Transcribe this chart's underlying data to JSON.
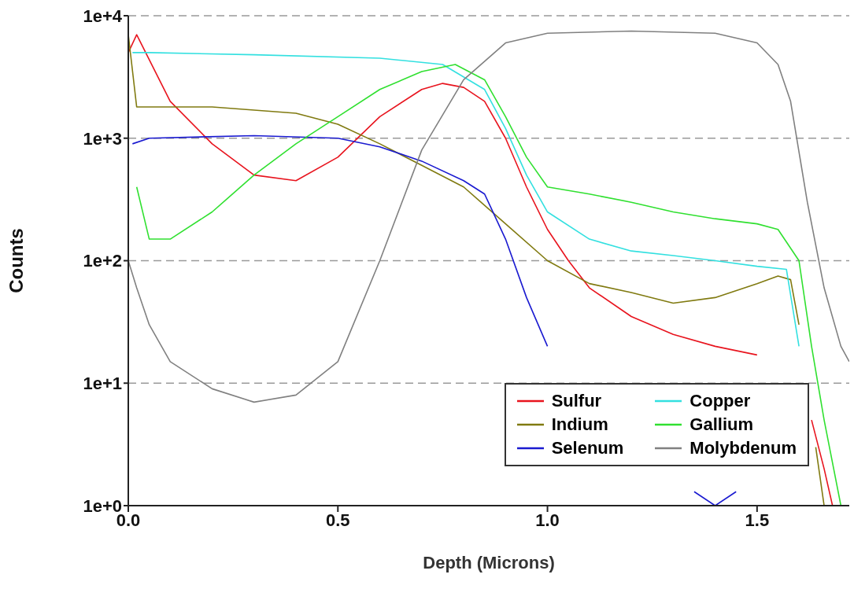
{
  "chart_data": {
    "type": "line",
    "xlabel": "Depth (Microns)",
    "ylabel": "Counts",
    "log": "y",
    "grid": "y",
    "legend": "bottom right",
    "marker": "none",
    "line_style": "solid",
    "xlim": [
      0,
      1.72
    ],
    "xticks": [
      {
        "value": 0,
        "label": "0.0"
      },
      {
        "value": 0.5,
        "label": "0.5"
      },
      {
        "value": 1,
        "label": "1.0"
      },
      {
        "value": 1.5,
        "label": "1.5"
      }
    ],
    "ylim": [
      1,
      10000
    ],
    "yticks": [
      {
        "value": 1,
        "label": "1e+0"
      },
      {
        "value": 10,
        "label": "1e+1"
      },
      {
        "value": 100,
        "label": "1e+2"
      },
      {
        "value": 1000,
        "label": "1e+3"
      },
      {
        "value": 10000,
        "label": "1e+4"
      }
    ],
    "series": [
      {
        "name": "Sulfur",
        "color": "#e8141e",
        "x": [
          0,
          0.02,
          0.1,
          0.2,
          0.3,
          0.4,
          0.5,
          0.6,
          0.7,
          0.75,
          0.8,
          0.85,
          0.9,
          0.95,
          1.0,
          1.05,
          1.1,
          1.2,
          1.3,
          1.4,
          1.5,
          1.55,
          1.63,
          1.66,
          1.68
        ],
        "values": [
          5000,
          7000,
          2000,
          900,
          500,
          450,
          700,
          1500,
          2500,
          2800,
          2600,
          2000,
          1000,
          400,
          180,
          100,
          60,
          35,
          25,
          20,
          17,
          null,
          5,
          2,
          1
        ]
      },
      {
        "name": "Indium",
        "color": "#807a10",
        "x": [
          0,
          0.02,
          0.2,
          0.4,
          0.5,
          0.6,
          0.7,
          0.8,
          0.9,
          1.0,
          1.1,
          1.2,
          1.3,
          1.4,
          1.5,
          1.55,
          1.58,
          1.6,
          1.61,
          1.64,
          1.66
        ],
        "values": [
          7000,
          1800,
          1800,
          1600,
          1300,
          900,
          600,
          400,
          200,
          100,
          65,
          55,
          45,
          50,
          65,
          75,
          70,
          30,
          null,
          3,
          1
        ]
      },
      {
        "name": "Selenum",
        "color": "#1a1ad0",
        "x": [
          0.01,
          0.05,
          0.3,
          0.5,
          0.6,
          0.7,
          0.8,
          0.85,
          0.9,
          0.95,
          1.0,
          1.05,
          1.35,
          1.4,
          1.45
        ],
        "values": [
          900,
          1000,
          1050,
          1000,
          850,
          650,
          450,
          350,
          150,
          50,
          20,
          null,
          1.3,
          1,
          1.3
        ]
      },
      {
        "name": "Copper",
        "color": "#33e0e0",
        "x": [
          0.01,
          0.05,
          0.3,
          0.6,
          0.75,
          0.85,
          0.9,
          0.95,
          1.0,
          1.1,
          1.2,
          1.3,
          1.4,
          1.5,
          1.57,
          1.6
        ],
        "values": [
          5000,
          5000,
          4800,
          4500,
          4000,
          2500,
          1200,
          500,
          250,
          150,
          120,
          110,
          100,
          90,
          85,
          20
        ]
      },
      {
        "name": "Gallium",
        "color": "#30e030",
        "x": [
          0.02,
          0.05,
          0.1,
          0.2,
          0.3,
          0.4,
          0.5,
          0.6,
          0.7,
          0.78,
          0.85,
          0.9,
          0.95,
          1.0,
          1.1,
          1.2,
          1.3,
          1.4,
          1.5,
          1.55,
          1.6,
          1.63,
          1.66,
          1.7
        ],
        "values": [
          400,
          150,
          150,
          250,
          500,
          900,
          1500,
          2500,
          3500,
          4000,
          3000,
          1500,
          700,
          400,
          350,
          300,
          250,
          220,
          200,
          180,
          100,
          20,
          5,
          1
        ]
      },
      {
        "name": "Molybdenum",
        "color": "#808080",
        "x": [
          0,
          0.02,
          0.05,
          0.1,
          0.2,
          0.3,
          0.4,
          0.5,
          0.6,
          0.7,
          0.8,
          0.9,
          1.0,
          1.2,
          1.4,
          1.5,
          1.55,
          1.58,
          1.62,
          1.66,
          1.7,
          1.72
        ],
        "values": [
          100,
          60,
          30,
          15,
          9,
          7,
          8,
          15,
          100,
          800,
          3000,
          6000,
          7200,
          7500,
          7200,
          6000,
          4000,
          2000,
          300,
          60,
          20,
          15
        ]
      }
    ]
  }
}
